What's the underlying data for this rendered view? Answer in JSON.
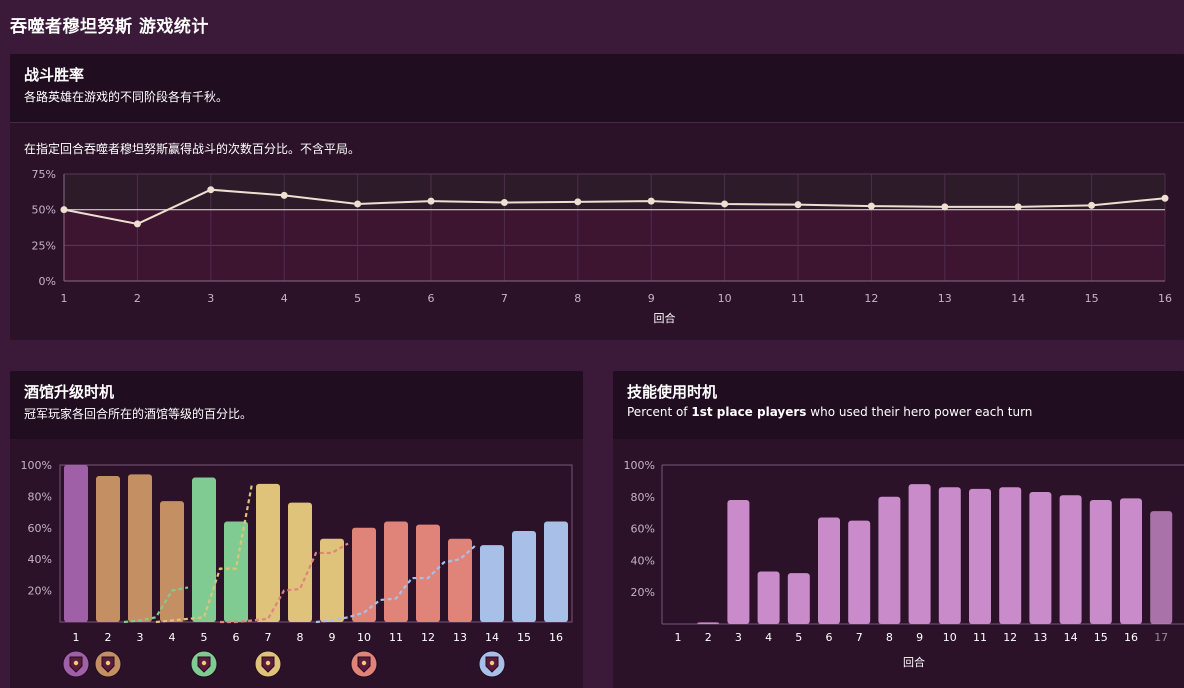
{
  "page": {
    "title": "吞噬者穆坦努斯 游戏统计"
  },
  "winrate": {
    "title": "战斗胜率",
    "subtitle": "各路英雄在游戏的不同阶段各有千秋。",
    "description": "在指定回合吞噬者穆坦努斯赢得战斗的次数百分比。不含平局。"
  },
  "tavern": {
    "title": "酒馆升级时机",
    "subtitle": "冠军玩家各回合所在的酒馆等级的百分比。"
  },
  "heropower": {
    "title": "技能使用时机",
    "subtitle_pre": "Percent of ",
    "subtitle_bold": "1st place players",
    "subtitle_post": " who used their hero power each turn"
  },
  "chart_data": [
    {
      "type": "line",
      "x": [
        1,
        2,
        3,
        4,
        5,
        6,
        7,
        8,
        9,
        10,
        11,
        12,
        13,
        14,
        15,
        16
      ],
      "y": [
        50,
        40,
        64,
        60,
        54,
        56,
        55,
        55.5,
        56,
        54,
        53.5,
        52.5,
        52,
        52,
        53,
        58
      ],
      "xlabel": "回合",
      "ylim": [
        0,
        75
      ],
      "yticks": [
        "0%",
        "25%",
        "50%",
        "75%"
      ],
      "ytick_values": [
        0,
        25,
        50,
        75
      ],
      "reference_line": 50,
      "colors": {
        "line": "#ede0d0",
        "above": "#2e1b2a",
        "below": "#3d1530"
      }
    },
    {
      "type": "bar",
      "categories": [
        "1",
        "2",
        "3",
        "4",
        "5",
        "6",
        "7",
        "8",
        "9",
        "10",
        "11",
        "12",
        "13",
        "14",
        "15",
        "16"
      ],
      "values": [
        100,
        93,
        94,
        77,
        92,
        64,
        88,
        76,
        53,
        60,
        64,
        62,
        53,
        49,
        58,
        64
      ],
      "bar_colors": [
        "#a060a8",
        "#c48f63",
        "#c48f63",
        "#c48f63",
        "#7fcb91",
        "#7fcb91",
        "#dfc37a",
        "#dfc37a",
        "#dfc37a",
        "#e0847a",
        "#e0847a",
        "#e0847a",
        "#e0847a",
        "#a8c0e8",
        "#a8c0e8",
        "#a8c0e8"
      ],
      "ylim": [
        0,
        100
      ],
      "yticks": [
        "20%",
        "40%",
        "60%",
        "80%",
        "100%"
      ],
      "ytick_values": [
        20,
        40,
        60,
        80,
        100
      ],
      "tier_markers_at": [
        1,
        2,
        5,
        7,
        10,
        14
      ],
      "tier_colors": [
        "#a060a8",
        "#c48f63",
        "#7fcb91",
        "#dfc37a",
        "#e0847a",
        "#a8c0e8"
      ],
      "cumulative_series": [
        {
          "color": "#7fcb91",
          "x": [
            2.5,
            3,
            3.5,
            4,
            4.5
          ],
          "y": [
            0,
            1,
            3,
            20,
            22
          ]
        },
        {
          "color": "#dfc37a",
          "x": [
            3.5,
            4,
            4.5,
            5,
            5.5,
            6,
            6.5
          ],
          "y": [
            0,
            1,
            2,
            3,
            34,
            34,
            88
          ]
        },
        {
          "color": "#e0847a",
          "x": [
            5.5,
            6,
            6.5,
            7,
            7.5,
            8,
            8.5,
            9,
            9.5
          ],
          "y": [
            0,
            0,
            1,
            2,
            20,
            21,
            44,
            44,
            50
          ]
        },
        {
          "color": "#a8c0e8",
          "x": [
            8.5,
            9,
            9.5,
            10,
            10.5,
            11,
            11.5,
            12,
            12.5,
            13,
            13.5
          ],
          "y": [
            0,
            1,
            3,
            6,
            14,
            15,
            28,
            28,
            38,
            40,
            49
          ]
        }
      ]
    },
    {
      "type": "bar",
      "categories": [
        "1",
        "2",
        "3",
        "4",
        "5",
        "6",
        "7",
        "8",
        "9",
        "10",
        "11",
        "12",
        "13",
        "14",
        "15",
        "16",
        "17"
      ],
      "values": [
        0,
        1,
        78,
        33,
        32,
        67,
        65,
        80,
        88,
        86,
        85,
        86,
        83,
        81,
        78,
        79,
        71
      ],
      "xlabel": "回合",
      "ylim": [
        0,
        100
      ],
      "yticks": [
        "20%",
        "40%",
        "60%",
        "80%",
        "100%"
      ],
      "ytick_values": [
        20,
        40,
        60,
        80,
        100
      ],
      "bar_color": "#c98bc9"
    }
  ]
}
